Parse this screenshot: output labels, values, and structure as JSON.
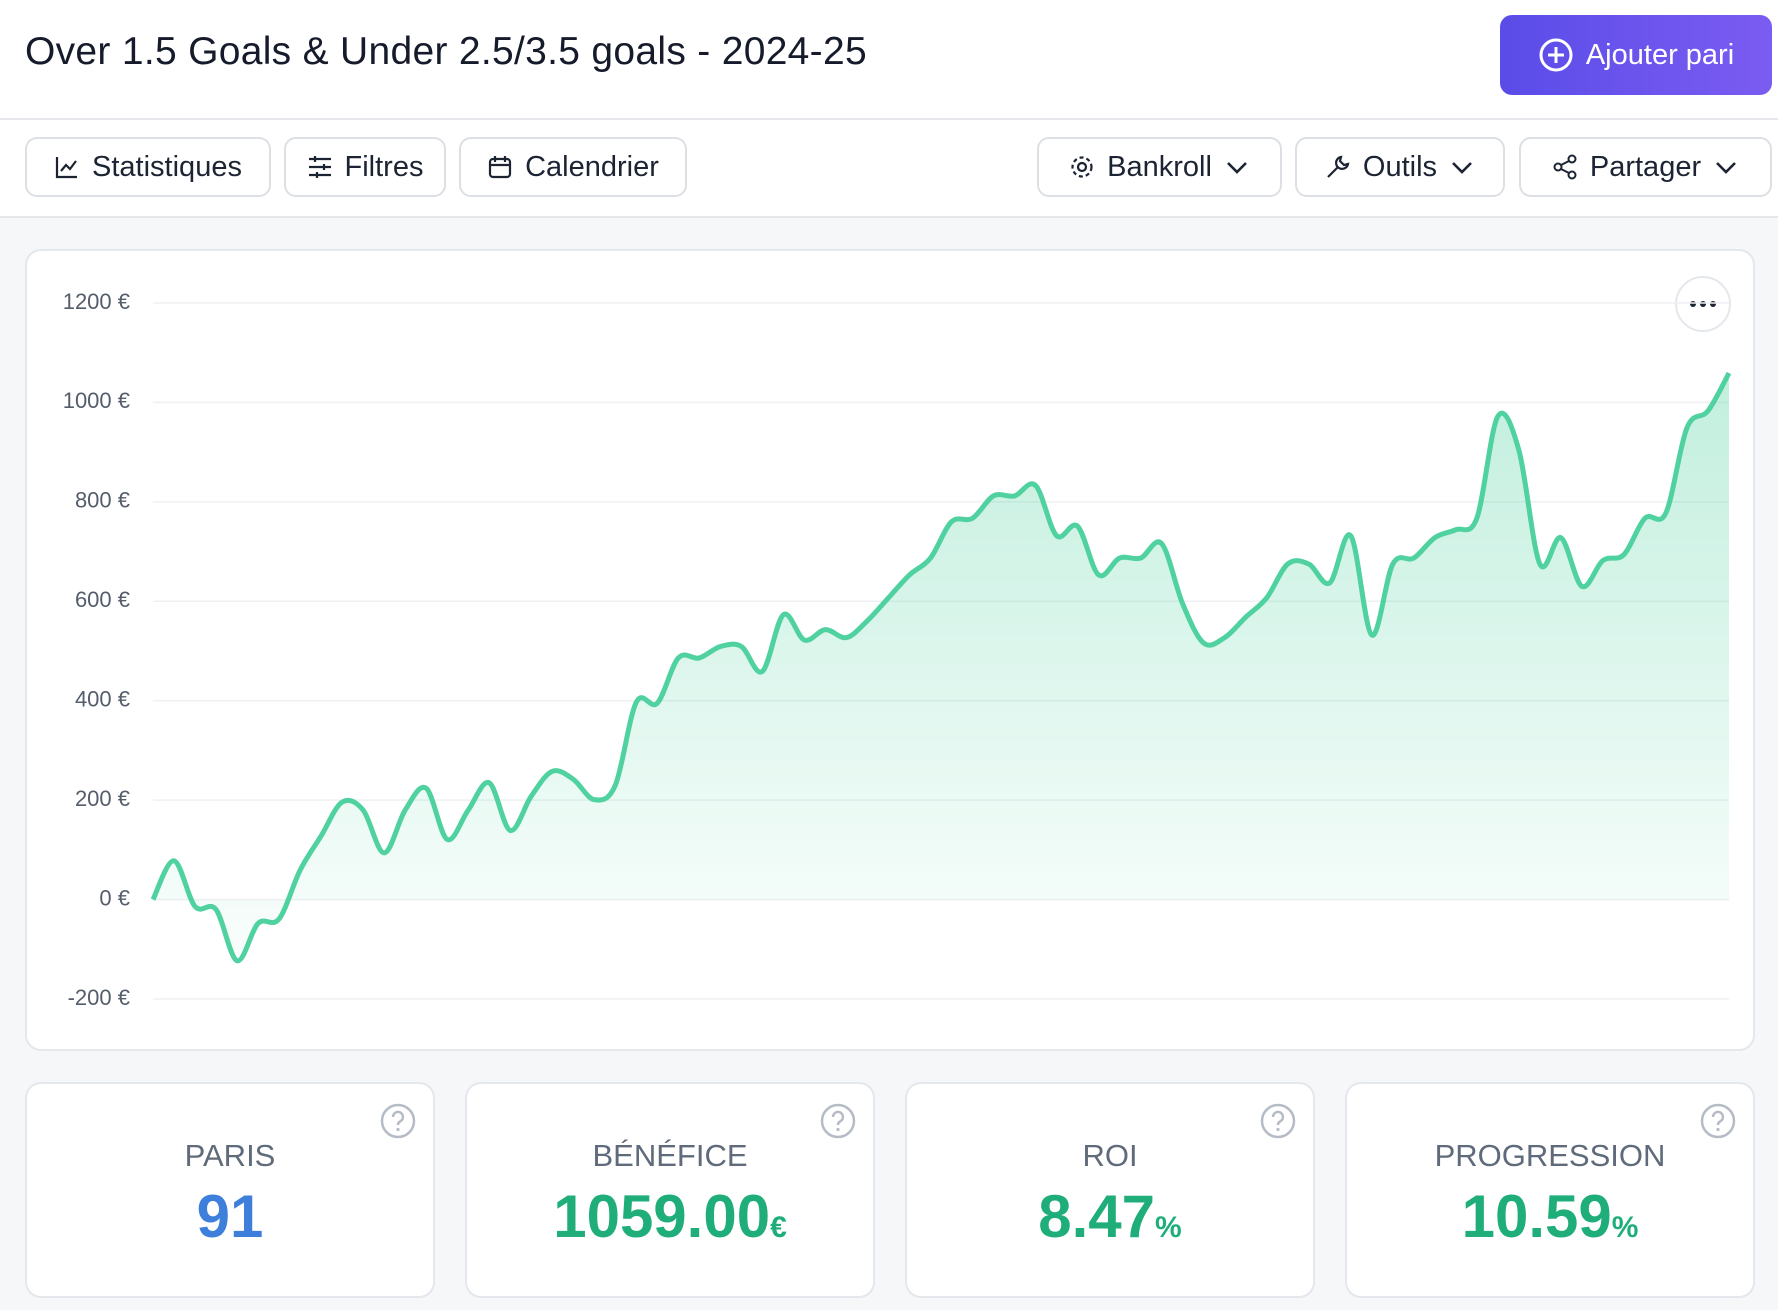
{
  "header": {
    "title": "Over 1.5 Goals & Under 2.5/3.5 goals - 2024-25",
    "add_button": "Ajouter pari"
  },
  "toolbar": {
    "left": [
      "Statistiques",
      "Filtres",
      "Calendrier"
    ],
    "right": [
      "Bankroll",
      "Outils",
      "Partager"
    ]
  },
  "chart_data": {
    "type": "line",
    "color": "#4fd1a0",
    "fill": "#4fd1a0",
    "grid": true,
    "ylim": [
      -200,
      1200
    ],
    "yticks": [
      {
        "value": -200,
        "label": "-200 €"
      },
      {
        "value": 0,
        "label": "0 €"
      },
      {
        "value": 200,
        "label": "200 €"
      },
      {
        "value": 400,
        "label": "400 €"
      },
      {
        "value": 600,
        "label": "600 €"
      },
      {
        "value": 800,
        "label": "800 €"
      },
      {
        "value": 1000,
        "label": "1000 €"
      },
      {
        "value": 1200,
        "label": "1200 €"
      }
    ],
    "values": [
      0,
      78,
      -14,
      -20,
      -123,
      -48,
      -39,
      59,
      128,
      196,
      180,
      94,
      180,
      224,
      121,
      180,
      235,
      139,
      208,
      258,
      242,
      201,
      230,
      397,
      395,
      486,
      486,
      509,
      509,
      459,
      573,
      522,
      543,
      527,
      561,
      607,
      653,
      687,
      760,
      767,
      812,
      812,
      833,
      732,
      751,
      653,
      687,
      687,
      716,
      595,
      516,
      527,
      568,
      607,
      675,
      675,
      637,
      732,
      532,
      675,
      687,
      728,
      744,
      767,
      972,
      904,
      675,
      728,
      630,
      682,
      694,
      767,
      778,
      949,
      983,
      1059
    ]
  },
  "stats": [
    {
      "label": "PARIS",
      "value": "91"
    },
    {
      "label": "BÉNÉFICE",
      "value": "1059.00",
      "unit": "€"
    },
    {
      "label": "ROI",
      "value": "8.47",
      "unit": "%"
    },
    {
      "label": "PROGRESSION",
      "value": "10.59",
      "unit": "%"
    }
  ]
}
